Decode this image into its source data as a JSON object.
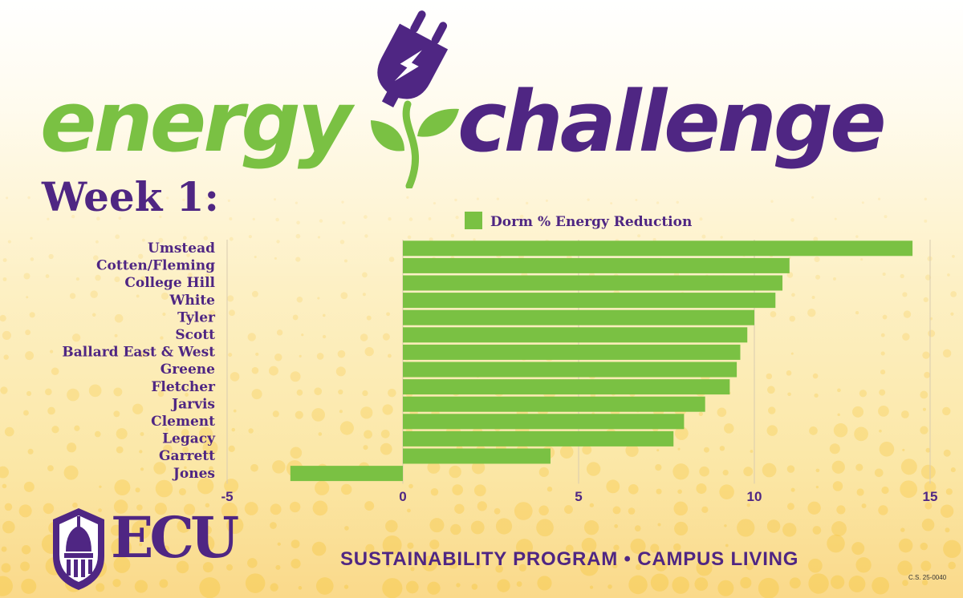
{
  "header": {
    "title_left": "energy",
    "title_right": "challenge",
    "week": "Week 1:"
  },
  "colors": {
    "green": "#7ac143",
    "purple": "#4f2683",
    "bar": "#7ac143"
  },
  "icons": [
    "plug-icon",
    "leaf-icon",
    "lightning-icon",
    "ecu-seal-icon"
  ],
  "chart_data": {
    "type": "bar",
    "orientation": "horizontal",
    "categories": [
      "Umstead",
      "Cotten/Fleming",
      "College Hill",
      "White",
      "Tyler",
      "Scott",
      "Ballard East & West",
      "Greene",
      "Fletcher",
      "Jarvis",
      "Clement",
      "Legacy",
      "Garrett",
      "Jones"
    ],
    "series": [
      {
        "name": "Dorm % Energy Reduction",
        "values": [
          14.5,
          11.0,
          10.8,
          10.6,
          10.0,
          9.8,
          9.6,
          9.5,
          9.3,
          8.6,
          8.0,
          7.7,
          4.2,
          -3.2
        ]
      }
    ],
    "xlim": [
      -5,
      15
    ],
    "xticks": [
      "-5",
      "0",
      "5",
      "10",
      "15"
    ],
    "grid": true,
    "legend": "top"
  },
  "footer": {
    "logo_text": "ECU",
    "program": "SUSTAINABILITY PROGRAM • CAMPUS LIVING",
    "code": "C.S. 25-0040"
  }
}
